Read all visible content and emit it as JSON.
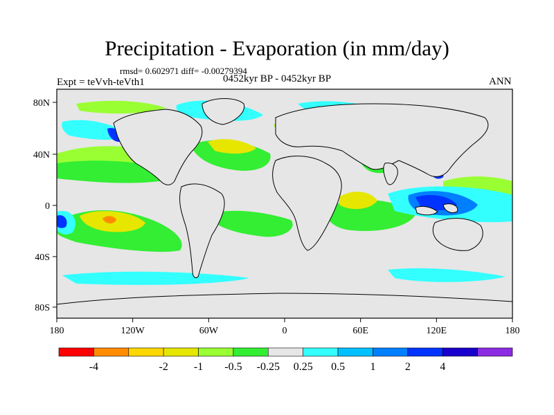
{
  "title": "Precipitation - Evaporation (in mm/day)",
  "stats": "rmsd= 0.602971 diff= -0.00279394",
  "expt": "Expt = teVvh-teVth1",
  "period": "0452kyr BP - 0452kyr BP",
  "season": "ANN",
  "lat_labels": [
    "80N",
    "40N",
    "0",
    "40S",
    "80S"
  ],
  "lon_labels": [
    "180",
    "120W",
    "60W",
    "0",
    "60E",
    "120E",
    "180"
  ],
  "colorbar": {
    "colors": [
      "#ff0000",
      "#ff8c00",
      "#ffd700",
      "#e6e600",
      "#99ff33",
      "#33ee33",
      "#e6e6e6",
      "#33ffff",
      "#00c0ff",
      "#007fff",
      "#0033ff",
      "#1a00cc",
      "#8b2be2"
    ],
    "labels": [
      "-4",
      "-2",
      "-1",
      "-0.5",
      "-0.25",
      "0.25",
      "0.5",
      "1",
      "2",
      "4"
    ]
  },
  "map": {
    "background_color": "#e6e6e6",
    "coastline_color": "#000000"
  }
}
